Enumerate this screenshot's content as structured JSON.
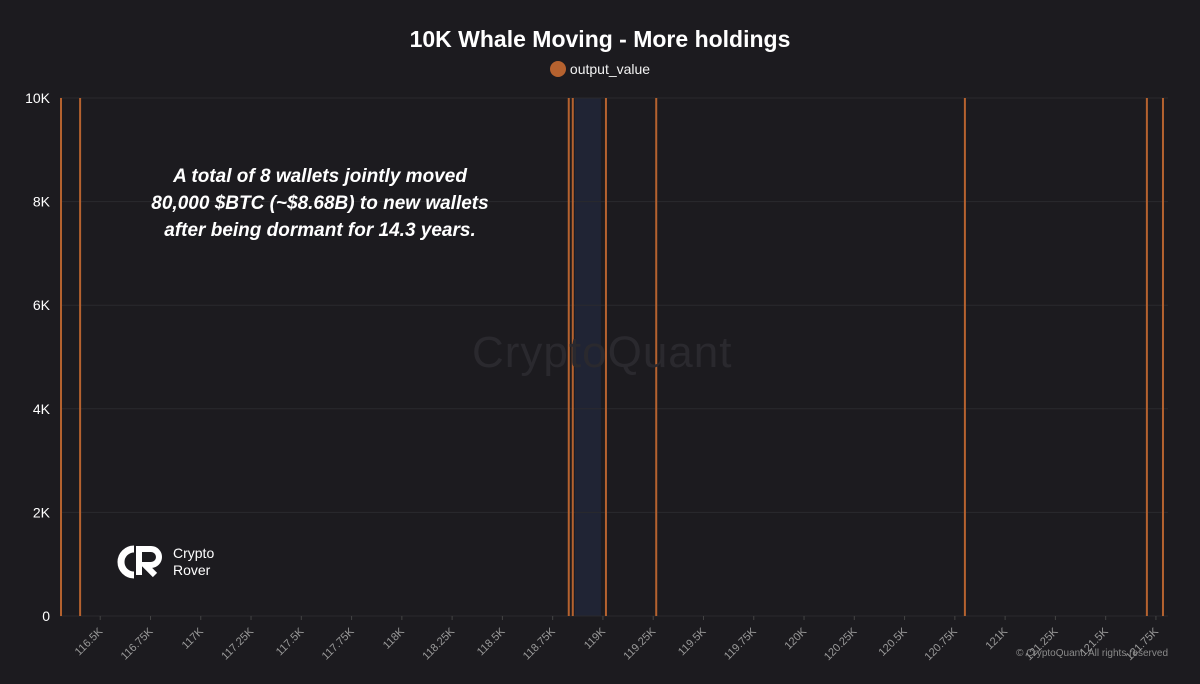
{
  "chart_data": {
    "type": "bar",
    "title": "10K Whale Moving - More holdings",
    "legend": [
      {
        "name": "output_value",
        "color": "#b5622f"
      }
    ],
    "ylim": [
      0,
      10000
    ],
    "y_ticks": [
      "0",
      "2K",
      "4K",
      "6K",
      "8K",
      "10K"
    ],
    "y_tick_values": [
      0,
      2000,
      4000,
      6000,
      8000,
      10000
    ],
    "xlim": [
      116300,
      121810
    ],
    "x_ticks": [
      "116.5K",
      "116.75K",
      "117K",
      "117.25K",
      "117.5K",
      "117.75K",
      "118K",
      "118.25K",
      "118.5K",
      "118.75K",
      "119K",
      "119.25K",
      "119.5K",
      "119.75K",
      "120K",
      "120.25K",
      "120.5K",
      "120.75K",
      "121K",
      "121.25K",
      "121.5K",
      "121.75K"
    ],
    "x_tick_values": [
      116500,
      116750,
      117000,
      117250,
      117500,
      117750,
      118000,
      118250,
      118500,
      118750,
      119000,
      119250,
      119500,
      119750,
      120000,
      120250,
      120500,
      120750,
      121000,
      121250,
      121500,
      121750
    ],
    "series": [
      {
        "name": "output_value",
        "x": [
          116305,
          116400,
          118830,
          118850,
          119015,
          119265,
          120800,
          121705,
          121785
        ],
        "values": [
          10000,
          10000,
          10000,
          10000,
          10000,
          10000,
          10000,
          10000,
          10000
        ]
      }
    ],
    "annotation": [
      "A total of 8 wallets jointly moved",
      "80,000 $BTC (~$8.68B) to new wallets",
      "after being dormant for 14.3 years."
    ],
    "grid": true,
    "legend_position": "top-center"
  },
  "watermark": "CryptoQuant",
  "logo": {
    "line1": "Crypto",
    "line2": "Rover"
  },
  "copyright": "© CryptoQuant. All rights reserved",
  "colors": {
    "background": "#1c1b1f",
    "bar": "#b5622f",
    "grid": "#2a2a2e",
    "highlight": "#202434"
  }
}
